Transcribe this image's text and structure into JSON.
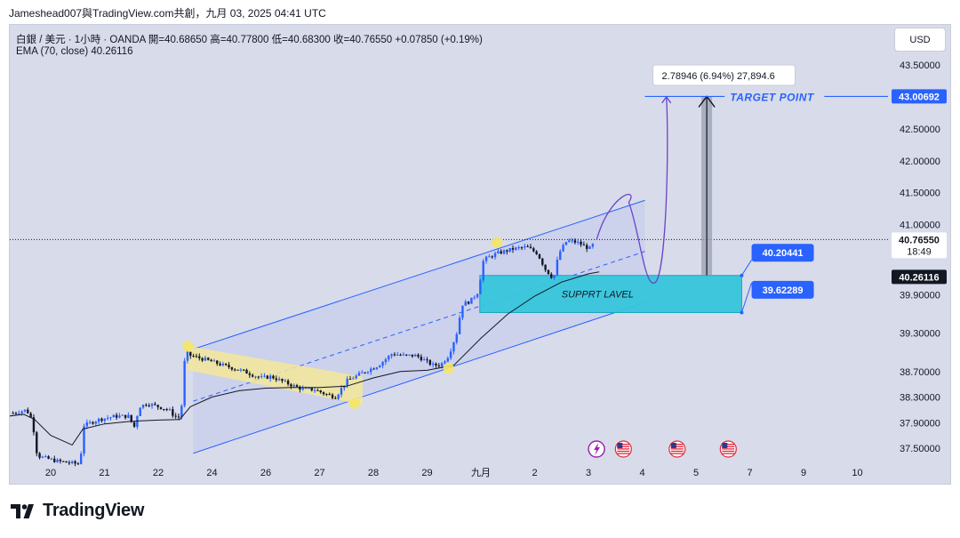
{
  "header": {
    "caption": "Jameshead007與TradingView.com共創，九月 03, 2025 04:41 UTC"
  },
  "legend": {
    "line1": "白銀 / 美元 · 1小時 · OANDA  開=40.68650  高=40.77800  低=40.68300  收=40.76550  +0.07850 (+0.19%)",
    "line2": "EMA (70, close)  40.26116"
  },
  "toolbar": {
    "currency_label": "USD"
  },
  "footer": {
    "brand": "TradingView"
  },
  "colors": {
    "chart_bg": "#d8dbea",
    "candle_up": "#2962ff",
    "candle_down": "#131722",
    "channel": "#2962ff",
    "flag": "#f2e89a",
    "support_zone": "#36c5dc",
    "label_blue": "#2962ff",
    "ema": "#131722"
  },
  "chart_data": {
    "type": "candlestick",
    "symbol": "白銀 / 美元",
    "interval": "1小時",
    "exchange": "OANDA",
    "ohlc": {
      "open": 40.6865,
      "high": 40.778,
      "low": 40.683,
      "close": 40.7655,
      "change": 0.0785,
      "change_pct": 0.19
    },
    "ema": {
      "period": 70,
      "value": 40.26116
    },
    "ylim": [
      37.2,
      43.9
    ],
    "y_ticks": [
      {
        "v": 43.5,
        "label": "43.50000"
      },
      {
        "v": 42.5,
        "label": "42.50000"
      },
      {
        "v": 42.0,
        "label": "42.00000"
      },
      {
        "v": 41.5,
        "label": "41.50000"
      },
      {
        "v": 41.0,
        "label": "41.00000"
      },
      {
        "v": 39.9,
        "label": "39.90000"
      },
      {
        "v": 39.3,
        "label": "39.30000"
      },
      {
        "v": 38.7,
        "label": "38.70000"
      },
      {
        "v": 38.3,
        "label": "38.30000"
      },
      {
        "v": 37.9,
        "label": "37.90000"
      },
      {
        "v": 37.5,
        "label": "37.50000"
      }
    ],
    "x_ticks": [
      {
        "d": 0,
        "label": "20"
      },
      {
        "d": 1,
        "label": "21"
      },
      {
        "d": 2,
        "label": "22"
      },
      {
        "d": 3,
        "label": "24"
      },
      {
        "d": 4,
        "label": "26"
      },
      {
        "d": 5,
        "label": "27"
      },
      {
        "d": 6,
        "label": "28"
      },
      {
        "d": 7,
        "label": "29"
      },
      {
        "d": 8,
        "label": "九月"
      },
      {
        "d": 9,
        "label": "2"
      },
      {
        "d": 10,
        "label": "3"
      },
      {
        "d": 11,
        "label": "4"
      },
      {
        "d": 12,
        "label": "5"
      },
      {
        "d": 13,
        "label": "7"
      },
      {
        "d": 14,
        "label": "9"
      },
      {
        "d": 15,
        "label": "10"
      }
    ],
    "price_path": [
      [
        -0.7,
        38.05
      ],
      [
        -0.45,
        38.1
      ],
      [
        -0.35,
        37.95
      ],
      [
        -0.3,
        37.7
      ],
      [
        -0.25,
        37.38
      ],
      [
        0.1,
        37.3
      ],
      [
        0.55,
        37.25
      ],
      [
        0.6,
        37.85
      ],
      [
        0.9,
        37.95
      ],
      [
        1.2,
        38.0
      ],
      [
        1.45,
        38.0
      ],
      [
        1.55,
        37.82
      ],
      [
        1.65,
        38.15
      ],
      [
        1.8,
        38.2
      ],
      [
        2.0,
        38.15
      ],
      [
        2.2,
        38.1
      ],
      [
        2.3,
        38.0
      ],
      [
        2.4,
        37.98
      ],
      [
        2.45,
        38.25
      ],
      [
        2.5,
        39.0
      ],
      [
        2.6,
        38.95
      ],
      [
        2.9,
        38.88
      ],
      [
        3.2,
        38.8
      ],
      [
        3.4,
        38.75
      ],
      [
        3.6,
        38.7
      ],
      [
        3.9,
        38.6
      ],
      [
        4.1,
        38.62
      ],
      [
        4.3,
        38.55
      ],
      [
        4.5,
        38.48
      ],
      [
        4.7,
        38.42
      ],
      [
        4.9,
        38.42
      ],
      [
        5.1,
        38.35
      ],
      [
        5.3,
        38.3
      ],
      [
        5.5,
        38.55
      ],
      [
        5.8,
        38.68
      ],
      [
        6.1,
        38.8
      ],
      [
        6.35,
        38.98
      ],
      [
        6.55,
        38.95
      ],
      [
        6.8,
        38.95
      ],
      [
        7.1,
        38.8
      ],
      [
        7.25,
        38.8
      ],
      [
        7.4,
        38.95
      ],
      [
        7.55,
        39.3
      ],
      [
        7.65,
        39.75
      ],
      [
        7.8,
        39.8
      ],
      [
        7.95,
        39.95
      ],
      [
        8.05,
        40.45
      ],
      [
        8.3,
        40.55
      ],
      [
        8.6,
        40.62
      ],
      [
        8.85,
        40.65
      ],
      [
        9.05,
        40.55
      ],
      [
        9.2,
        40.3
      ],
      [
        9.35,
        40.15
      ],
      [
        9.45,
        40.55
      ],
      [
        9.6,
        40.75
      ],
      [
        9.8,
        40.72
      ],
      [
        9.95,
        40.65
      ],
      [
        10.05,
        40.62
      ],
      [
        10.12,
        40.76
      ]
    ],
    "ema_path": [
      [
        -0.8,
        38.0
      ],
      [
        -0.5,
        38.03
      ],
      [
        -0.3,
        37.95
      ],
      [
        0,
        37.7
      ],
      [
        0.4,
        37.55
      ],
      [
        0.6,
        37.8
      ],
      [
        1.0,
        37.88
      ],
      [
        1.5,
        37.92
      ],
      [
        2.0,
        37.94
      ],
      [
        2.4,
        37.95
      ],
      [
        2.6,
        38.15
      ],
      [
        3.0,
        38.3
      ],
      [
        3.5,
        38.4
      ],
      [
        4.0,
        38.44
      ],
      [
        4.5,
        38.45
      ],
      [
        5.0,
        38.45
      ],
      [
        5.5,
        38.47
      ],
      [
        6.0,
        38.6
      ],
      [
        6.5,
        38.7
      ],
      [
        7.0,
        38.72
      ],
      [
        7.5,
        38.8
      ],
      [
        8.0,
        39.22
      ],
      [
        8.5,
        39.6
      ],
      [
        9.0,
        39.88
      ],
      [
        9.5,
        40.1
      ],
      [
        10.0,
        40.23
      ],
      [
        10.2,
        40.26116
      ]
    ],
    "annotations": {
      "measure_label": "2.78946 (6.94%) 27,894.6",
      "target_label": "TARGET POINT",
      "support_label": "SUPPRT LAVEL",
      "target_price": 43.00692,
      "zone_top": 40.20441,
      "zone_bottom": 39.62289,
      "last_price": 40.7655,
      "countdown": "18:49",
      "ema_price": 40.26116,
      "price_labels": [
        "43.00692",
        "40.20441",
        "39.62289",
        "40.76550",
        "40.26116"
      ]
    },
    "grid": false,
    "legend_position": "top-left"
  }
}
